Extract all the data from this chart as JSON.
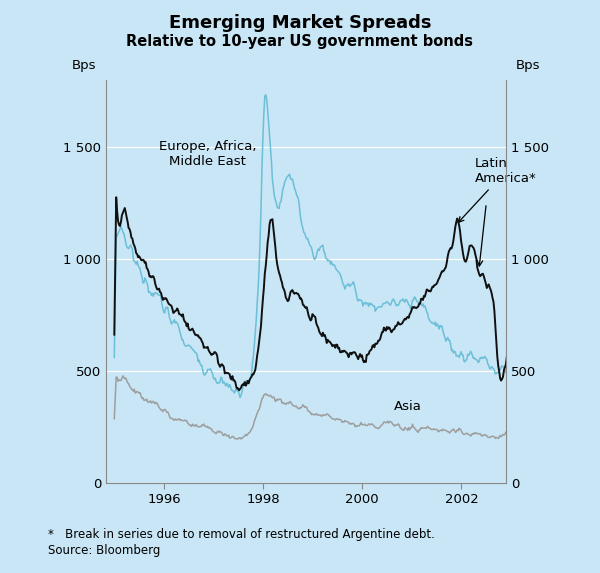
{
  "title": "Emerging Market Spreads",
  "subtitle": "Relative to 10-year US government bonds",
  "ylabel_left": "Bps",
  "ylabel_right": "Bps",
  "ylim": [
    0,
    1800
  ],
  "yticks": [
    0,
    500,
    1000,
    1500
  ],
  "ytick_labels": [
    "0",
    "500",
    "1 000",
    "1 500"
  ],
  "xlim_start": 1994.83,
  "xlim_end": 2002.9,
  "xtick_locs": [
    1996,
    1998,
    2000,
    2002
  ],
  "background_color": "#c8e6f5",
  "line_color_europe": "#6bbfd8",
  "line_color_latin": "#111111",
  "line_color_asia": "#9e9e9e",
  "footnote_line1": "*   Break in series due to removal of restructured Argentine debt.",
  "footnote_line2": "Source: Bloomberg",
  "label_europe": "Europe, Africa,\nMiddle East",
  "label_latin": "Latin\nAmerica*",
  "label_asia": "Asia"
}
